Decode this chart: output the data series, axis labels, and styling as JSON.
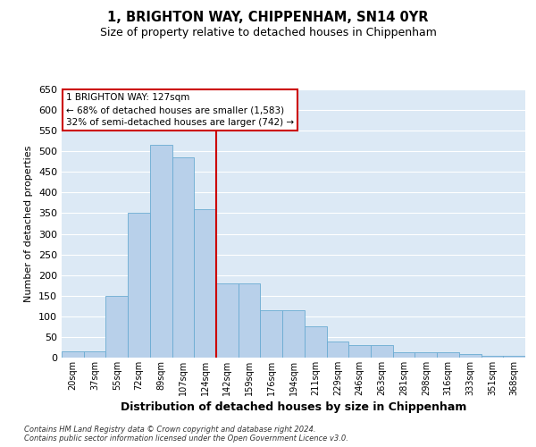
{
  "title": "1, BRIGHTON WAY, CHIPPENHAM, SN14 0YR",
  "subtitle": "Size of property relative to detached houses in Chippenham",
  "xlabel": "Distribution of detached houses by size in Chippenham",
  "ylabel": "Number of detached properties",
  "categories": [
    "20sqm",
    "37sqm",
    "55sqm",
    "72sqm",
    "89sqm",
    "107sqm",
    "124sqm",
    "142sqm",
    "159sqm",
    "176sqm",
    "194sqm",
    "211sqm",
    "229sqm",
    "246sqm",
    "263sqm",
    "281sqm",
    "298sqm",
    "316sqm",
    "333sqm",
    "351sqm",
    "368sqm"
  ],
  "values": [
    15,
    15,
    150,
    350,
    515,
    485,
    360,
    180,
    180,
    115,
    115,
    75,
    40,
    30,
    30,
    12,
    12,
    12,
    8,
    5,
    5
  ],
  "bar_color": "#b8d0ea",
  "bar_edge_color": "#6aabd2",
  "vline_color": "#cc0000",
  "annotation_box_edge_color": "#cc0000",
  "annotation_box_face_color": "#ffffff",
  "ylim": [
    0,
    650
  ],
  "yticks": [
    0,
    50,
    100,
    150,
    200,
    250,
    300,
    350,
    400,
    450,
    500,
    550,
    600,
    650
  ],
  "background_color": "#dce9f5",
  "prop_line_label": "1 BRIGHTON WAY: 127sqm",
  "annotation_line1": "← 68% of detached houses are smaller (1,583)",
  "annotation_line2": "32% of semi-detached houses are larger (742) →",
  "footer_line1": "Contains HM Land Registry data © Crown copyright and database right 2024.",
  "footer_line2": "Contains public sector information licensed under the Open Government Licence v3.0.",
  "prop_vline_x": 6.5
}
